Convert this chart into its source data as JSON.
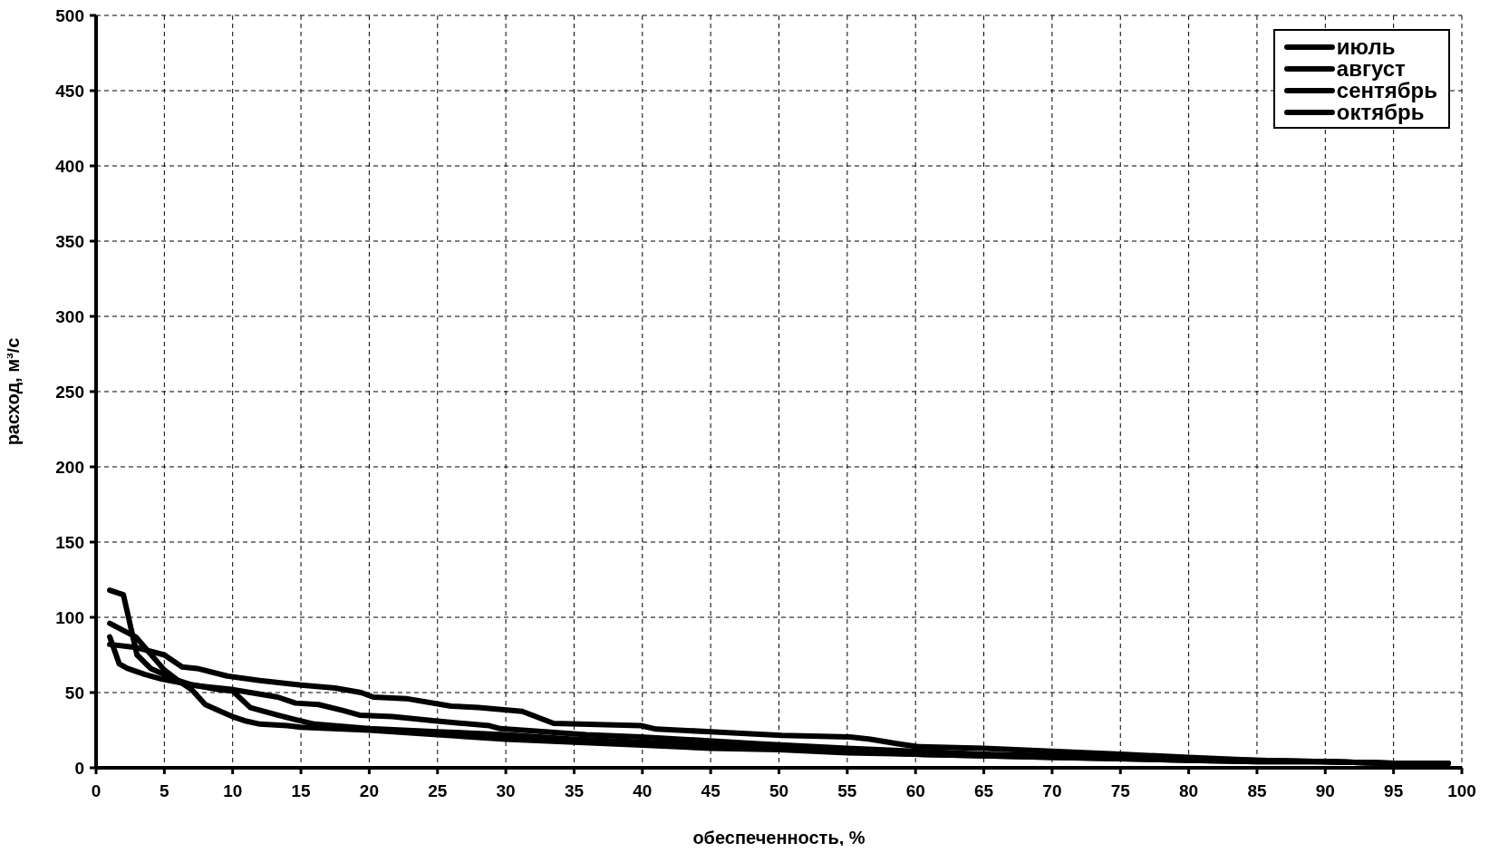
{
  "chart_data": {
    "type": "line",
    "xlabel": "обеспеченность, %",
    "ylabel": "расход, м³/с",
    "xlim": [
      0,
      100
    ],
    "xticks": [
      0,
      5,
      10,
      15,
      20,
      25,
      30,
      35,
      40,
      45,
      50,
      55,
      60,
      65,
      70,
      75,
      80,
      85,
      90,
      95,
      100
    ],
    "ylim": [
      0,
      500
    ],
    "yticks": [
      0,
      50,
      100,
      150,
      200,
      250,
      300,
      350,
      400,
      450,
      500
    ],
    "grid": true,
    "legend": "top right",
    "marker": "none",
    "line_style": "solid",
    "series": [
      {
        "name": "июль",
        "color": "#000000",
        "x": [
          1,
          2,
          3,
          4,
          5,
          6,
          7,
          8,
          9,
          10,
          11,
          12,
          14,
          15,
          20,
          25,
          30,
          35,
          40,
          45,
          50,
          55,
          60,
          65,
          70,
          75,
          80,
          85,
          90,
          95,
          99
        ],
        "values": [
          118,
          115,
          75,
          66,
          62,
          58,
          52,
          42,
          38,
          34,
          31,
          29,
          28,
          27,
          25,
          22,
          19,
          17,
          15,
          13,
          12,
          10,
          9,
          8,
          7,
          6,
          5,
          4,
          4,
          3,
          3
        ]
      },
      {
        "name": "август",
        "color": "#000000",
        "x": [
          1,
          2.9,
          5,
          6,
          7,
          8,
          10,
          13.3,
          14.6,
          16.3,
          18.1,
          19.3,
          21.7,
          25,
          28.8,
          29.6,
          35.9,
          39.9,
          48.5,
          55,
          60,
          65,
          70,
          75,
          80,
          85,
          90,
          95,
          99
        ],
        "values": [
          96,
          87,
          65,
          58,
          55,
          54,
          52,
          47,
          43,
          42,
          38,
          35,
          34,
          31,
          28,
          26,
          22,
          20.5,
          16,
          13,
          11,
          9,
          8,
          7,
          6,
          5,
          4,
          3,
          3
        ]
      },
      {
        "name": "сентябрь",
        "color": "#000000",
        "x": [
          1,
          1.7,
          2.3,
          3.6,
          4.8,
          6.5,
          9,
          10,
          11.3,
          13.3,
          14.6,
          16,
          20,
          25,
          30,
          35,
          40,
          45,
          50,
          55,
          60,
          65,
          70,
          75,
          80,
          85,
          90,
          95,
          99
        ],
        "values": [
          87,
          69,
          66,
          62,
          59,
          56,
          52,
          51,
          40,
          35,
          32,
          29,
          26,
          24,
          22,
          19,
          17,
          15,
          13,
          11,
          9,
          8,
          7,
          6,
          5,
          4,
          4,
          3,
          3
        ]
      },
      {
        "name": "октябрь",
        "color": "#000000",
        "x": [
          1,
          2.9,
          5,
          6.3,
          7.4,
          9.6,
          12,
          15,
          17.5,
          19.4,
          20.3,
          22.7,
          26,
          28,
          31.2,
          33.5,
          39.9,
          41,
          45,
          50.2,
          55.2,
          56.7,
          58.7,
          60.2,
          65,
          70,
          75,
          80,
          85,
          90,
          95,
          99
        ],
        "values": [
          82,
          80,
          75,
          67,
          66,
          61,
          58,
          55,
          53,
          50,
          47,
          46,
          41,
          40,
          37.5,
          29.5,
          28,
          25.7,
          24,
          21.6,
          20.5,
          19,
          16,
          14,
          13,
          11,
          9,
          7,
          5,
          4,
          3,
          3
        ]
      }
    ]
  }
}
